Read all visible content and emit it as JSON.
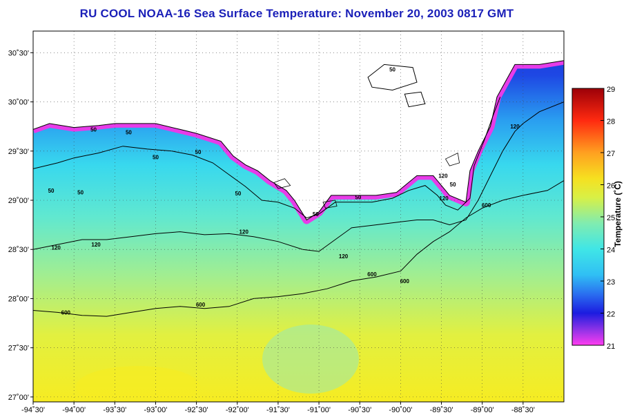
{
  "title": "RU COOL  NOAA-16  Sea Surface Temperature:  November 20, 2003 0817 GMT",
  "map": {
    "lon_range": [
      -94.5,
      -88.0
    ],
    "lat_range": [
      26.95,
      30.72
    ],
    "grid": true,
    "lon_ticks": [
      {
        "value": -94.5,
        "label": "-94˚30'"
      },
      {
        "value": -94.0,
        "label": "-94˚00'"
      },
      {
        "value": -93.5,
        "label": "-93˚30'"
      },
      {
        "value": -93.0,
        "label": "-93˚00'"
      },
      {
        "value": -92.5,
        "label": "-92˚30'"
      },
      {
        "value": -92.0,
        "label": "-92˚00'"
      },
      {
        "value": -91.5,
        "label": "-91˚30'"
      },
      {
        "value": -91.0,
        "label": "-91˚00'"
      },
      {
        "value": -90.5,
        "label": "-90˚30'"
      },
      {
        "value": -90.0,
        "label": "-90˚00'"
      },
      {
        "value": -89.5,
        "label": "-89˚30'"
      },
      {
        "value": -89.0,
        "label": "-89˚00'"
      },
      {
        "value": -88.5,
        "label": "-88˚30'"
      }
    ],
    "lat_ticks": [
      {
        "value": 30.5,
        "label": "30˚30'"
      },
      {
        "value": 30.0,
        "label": "30˚00'"
      },
      {
        "value": 29.5,
        "label": "29˚30'"
      },
      {
        "value": 29.0,
        "label": "29˚00'"
      },
      {
        "value": 28.5,
        "label": "28˚30'"
      },
      {
        "value": 28.0,
        "label": "28˚00'"
      },
      {
        "value": 27.5,
        "label": "27˚30'"
      },
      {
        "value": 27.0,
        "label": "27˚00'"
      }
    ],
    "coast": [
      [
        -94.5,
        29.72
      ],
      [
        -94.3,
        29.78
      ],
      [
        -94.0,
        29.74
      ],
      [
        -93.7,
        29.76
      ],
      [
        -93.5,
        29.78
      ],
      [
        -93.2,
        29.78
      ],
      [
        -93.0,
        29.78
      ],
      [
        -92.7,
        29.72
      ],
      [
        -92.5,
        29.68
      ],
      [
        -92.2,
        29.6
      ],
      [
        -92.05,
        29.45
      ],
      [
        -91.9,
        29.36
      ],
      [
        -91.75,
        29.3
      ],
      [
        -91.6,
        29.2
      ],
      [
        -91.4,
        29.1
      ],
      [
        -91.3,
        29.0
      ],
      [
        -91.15,
        28.8
      ],
      [
        -91.0,
        28.88
      ],
      [
        -90.85,
        29.05
      ],
      [
        -90.6,
        29.05
      ],
      [
        -90.3,
        29.05
      ],
      [
        -90.05,
        29.08
      ],
      [
        -89.8,
        29.25
      ],
      [
        -89.6,
        29.25
      ],
      [
        -89.4,
        29.05
      ],
      [
        -89.2,
        28.98
      ],
      [
        -89.15,
        29.3
      ],
      [
        -89.05,
        29.5
      ],
      [
        -88.9,
        29.75
      ],
      [
        -88.82,
        30.05
      ],
      [
        -88.6,
        30.38
      ],
      [
        -88.3,
        30.38
      ],
      [
        -88.0,
        30.42
      ]
    ],
    "lakes": [
      [
        [
          -90.4,
          30.25
        ],
        [
          -90.2,
          30.38
        ],
        [
          -89.85,
          30.35
        ],
        [
          -89.8,
          30.2
        ],
        [
          -90.1,
          30.12
        ],
        [
          -90.35,
          30.15
        ]
      ],
      [
        [
          -89.95,
          30.08
        ],
        [
          -89.75,
          30.1
        ],
        [
          -89.7,
          29.98
        ],
        [
          -89.9,
          29.95
        ]
      ]
    ],
    "islands": [
      [
        [
          -91.55,
          29.18
        ],
        [
          -91.42,
          29.22
        ],
        [
          -91.35,
          29.15
        ],
        [
          -91.5,
          29.12
        ]
      ],
      [
        [
          -90.95,
          28.98
        ],
        [
          -90.8,
          29.0
        ],
        [
          -90.78,
          28.94
        ],
        [
          -90.92,
          28.92
        ]
      ],
      [
        [
          -89.45,
          29.42
        ],
        [
          -89.3,
          29.48
        ],
        [
          -89.28,
          29.38
        ],
        [
          -89.4,
          29.35
        ]
      ]
    ],
    "contours": [
      {
        "level": 50,
        "points": [
          [
            -94.5,
            29.32
          ],
          [
            -94.2,
            29.38
          ],
          [
            -94.0,
            29.43
          ],
          [
            -93.7,
            29.48
          ],
          [
            -93.4,
            29.55
          ],
          [
            -93.1,
            29.52
          ],
          [
            -92.8,
            29.5
          ],
          [
            -92.55,
            29.46
          ],
          [
            -92.3,
            29.38
          ],
          [
            -92.1,
            29.26
          ],
          [
            -91.9,
            29.14
          ],
          [
            -91.7,
            29.0
          ],
          [
            -91.5,
            28.98
          ],
          [
            -91.3,
            28.92
          ],
          [
            -91.15,
            28.82
          ],
          [
            -91.0,
            28.86
          ],
          [
            -90.8,
            28.98
          ],
          [
            -90.6,
            28.98
          ],
          [
            -90.35,
            28.98
          ],
          [
            -90.1,
            29.02
          ],
          [
            -89.9,
            29.1
          ],
          [
            -89.7,
            29.15
          ],
          [
            -89.55,
            29.05
          ],
          [
            -89.45,
            28.95
          ],
          [
            -89.3,
            28.9
          ],
          [
            -89.15,
            29.02
          ],
          [
            -89.1,
            29.35
          ],
          [
            -88.98,
            29.6
          ],
          [
            -88.85,
            29.9
          ],
          [
            -88.78,
            30.05
          ]
        ]
      },
      {
        "level": 120,
        "points": [
          [
            -94.5,
            28.5
          ],
          [
            -94.2,
            28.55
          ],
          [
            -93.9,
            28.6
          ],
          [
            -93.6,
            28.6
          ],
          [
            -93.3,
            28.63
          ],
          [
            -93.0,
            28.66
          ],
          [
            -92.7,
            28.68
          ],
          [
            -92.4,
            28.65
          ],
          [
            -92.1,
            28.66
          ],
          [
            -91.8,
            28.63
          ],
          [
            -91.5,
            28.58
          ],
          [
            -91.2,
            28.5
          ],
          [
            -91.0,
            28.48
          ],
          [
            -90.8,
            28.6
          ],
          [
            -90.6,
            28.72
          ],
          [
            -90.3,
            28.75
          ],
          [
            -90.0,
            28.78
          ],
          [
            -89.8,
            28.8
          ],
          [
            -89.6,
            28.8
          ],
          [
            -89.4,
            28.75
          ],
          [
            -89.2,
            28.8
          ],
          [
            -89.05,
            29.0
          ],
          [
            -88.9,
            29.25
          ],
          [
            -88.75,
            29.5
          ],
          [
            -88.6,
            29.7
          ],
          [
            -88.5,
            29.78
          ],
          [
            -88.3,
            29.9
          ],
          [
            -88.0,
            30.0
          ]
        ]
      },
      {
        "level": 600,
        "points": [
          [
            -94.5,
            27.88
          ],
          [
            -94.2,
            27.86
          ],
          [
            -93.9,
            27.83
          ],
          [
            -93.6,
            27.82
          ],
          [
            -93.3,
            27.86
          ],
          [
            -93.0,
            27.9
          ],
          [
            -92.7,
            27.92
          ],
          [
            -92.4,
            27.9
          ],
          [
            -92.1,
            27.92
          ],
          [
            -91.8,
            28.0
          ],
          [
            -91.5,
            28.02
          ],
          [
            -91.2,
            28.05
          ],
          [
            -90.9,
            28.1
          ],
          [
            -90.6,
            28.18
          ],
          [
            -90.3,
            28.22
          ],
          [
            -90.0,
            28.28
          ],
          [
            -89.8,
            28.45
          ],
          [
            -89.6,
            28.58
          ],
          [
            -89.4,
            28.68
          ],
          [
            -89.2,
            28.82
          ],
          [
            -89.0,
            28.92
          ],
          [
            -88.75,
            29.0
          ],
          [
            -88.5,
            29.05
          ],
          [
            -88.2,
            29.1
          ],
          [
            -88.0,
            29.2
          ]
        ]
      }
    ],
    "contour_labels": [
      {
        "text": "50",
        "lon": -94.28,
        "lat": 29.1
      },
      {
        "text": "50",
        "lon": -93.92,
        "lat": 29.08
      },
      {
        "text": "50",
        "lon": -93.76,
        "lat": 29.72
      },
      {
        "text": "50",
        "lon": -93.33,
        "lat": 29.69
      },
      {
        "text": "50",
        "lon": -93.0,
        "lat": 29.44
      },
      {
        "text": "50",
        "lon": -92.48,
        "lat": 29.49
      },
      {
        "text": "50",
        "lon": -91.99,
        "lat": 29.07
      },
      {
        "text": "50",
        "lon": -91.04,
        "lat": 28.86
      },
      {
        "text": "50",
        "lon": -90.52,
        "lat": 29.03
      },
      {
        "text": "50",
        "lon": -90.1,
        "lat": 30.33
      },
      {
        "text": "50",
        "lon": -89.36,
        "lat": 29.16
      },
      {
        "text": "120",
        "lon": -94.22,
        "lat": 28.52
      },
      {
        "text": "120",
        "lon": -93.73,
        "lat": 28.55
      },
      {
        "text": "120",
        "lon": -91.92,
        "lat": 28.68
      },
      {
        "text": "120",
        "lon": -90.7,
        "lat": 28.43
      },
      {
        "text": "120",
        "lon": -89.47,
        "lat": 29.02
      },
      {
        "text": "120",
        "lon": -89.48,
        "lat": 29.25
      },
      {
        "text": "120",
        "lon": -88.6,
        "lat": 29.75
      },
      {
        "text": "600",
        "lon": -94.1,
        "lat": 27.86
      },
      {
        "text": "600",
        "lon": -92.45,
        "lat": 27.94
      },
      {
        "text": "600",
        "lon": -90.35,
        "lat": 28.25
      },
      {
        "text": "600",
        "lon": -89.95,
        "lat": 28.18
      },
      {
        "text": "600",
        "lon": -88.95,
        "lat": 28.95
      }
    ]
  },
  "colorbar": {
    "label": "Temperature (˚C)",
    "min": 21,
    "max": 29,
    "ticks": [
      "21",
      "22",
      "23",
      "24",
      "25",
      "26",
      "27",
      "28",
      "29"
    ],
    "stops": [
      {
        "value": 21.0,
        "color": "#ff3cf0"
      },
      {
        "value": 21.5,
        "color": "#8a32e6"
      },
      {
        "value": 22.0,
        "color": "#1c1ce0"
      },
      {
        "value": 22.6,
        "color": "#2a70f0"
      },
      {
        "value": 23.2,
        "color": "#30c0f4"
      },
      {
        "value": 24.0,
        "color": "#40e6e6"
      },
      {
        "value": 24.8,
        "color": "#80ecb0"
      },
      {
        "value": 25.6,
        "color": "#d8f046"
      },
      {
        "value": 26.2,
        "color": "#f6e020"
      },
      {
        "value": 27.0,
        "color": "#ffa020"
      },
      {
        "value": 28.0,
        "color": "#ff2a10"
      },
      {
        "value": 29.0,
        "color": "#9c0008"
      }
    ]
  }
}
